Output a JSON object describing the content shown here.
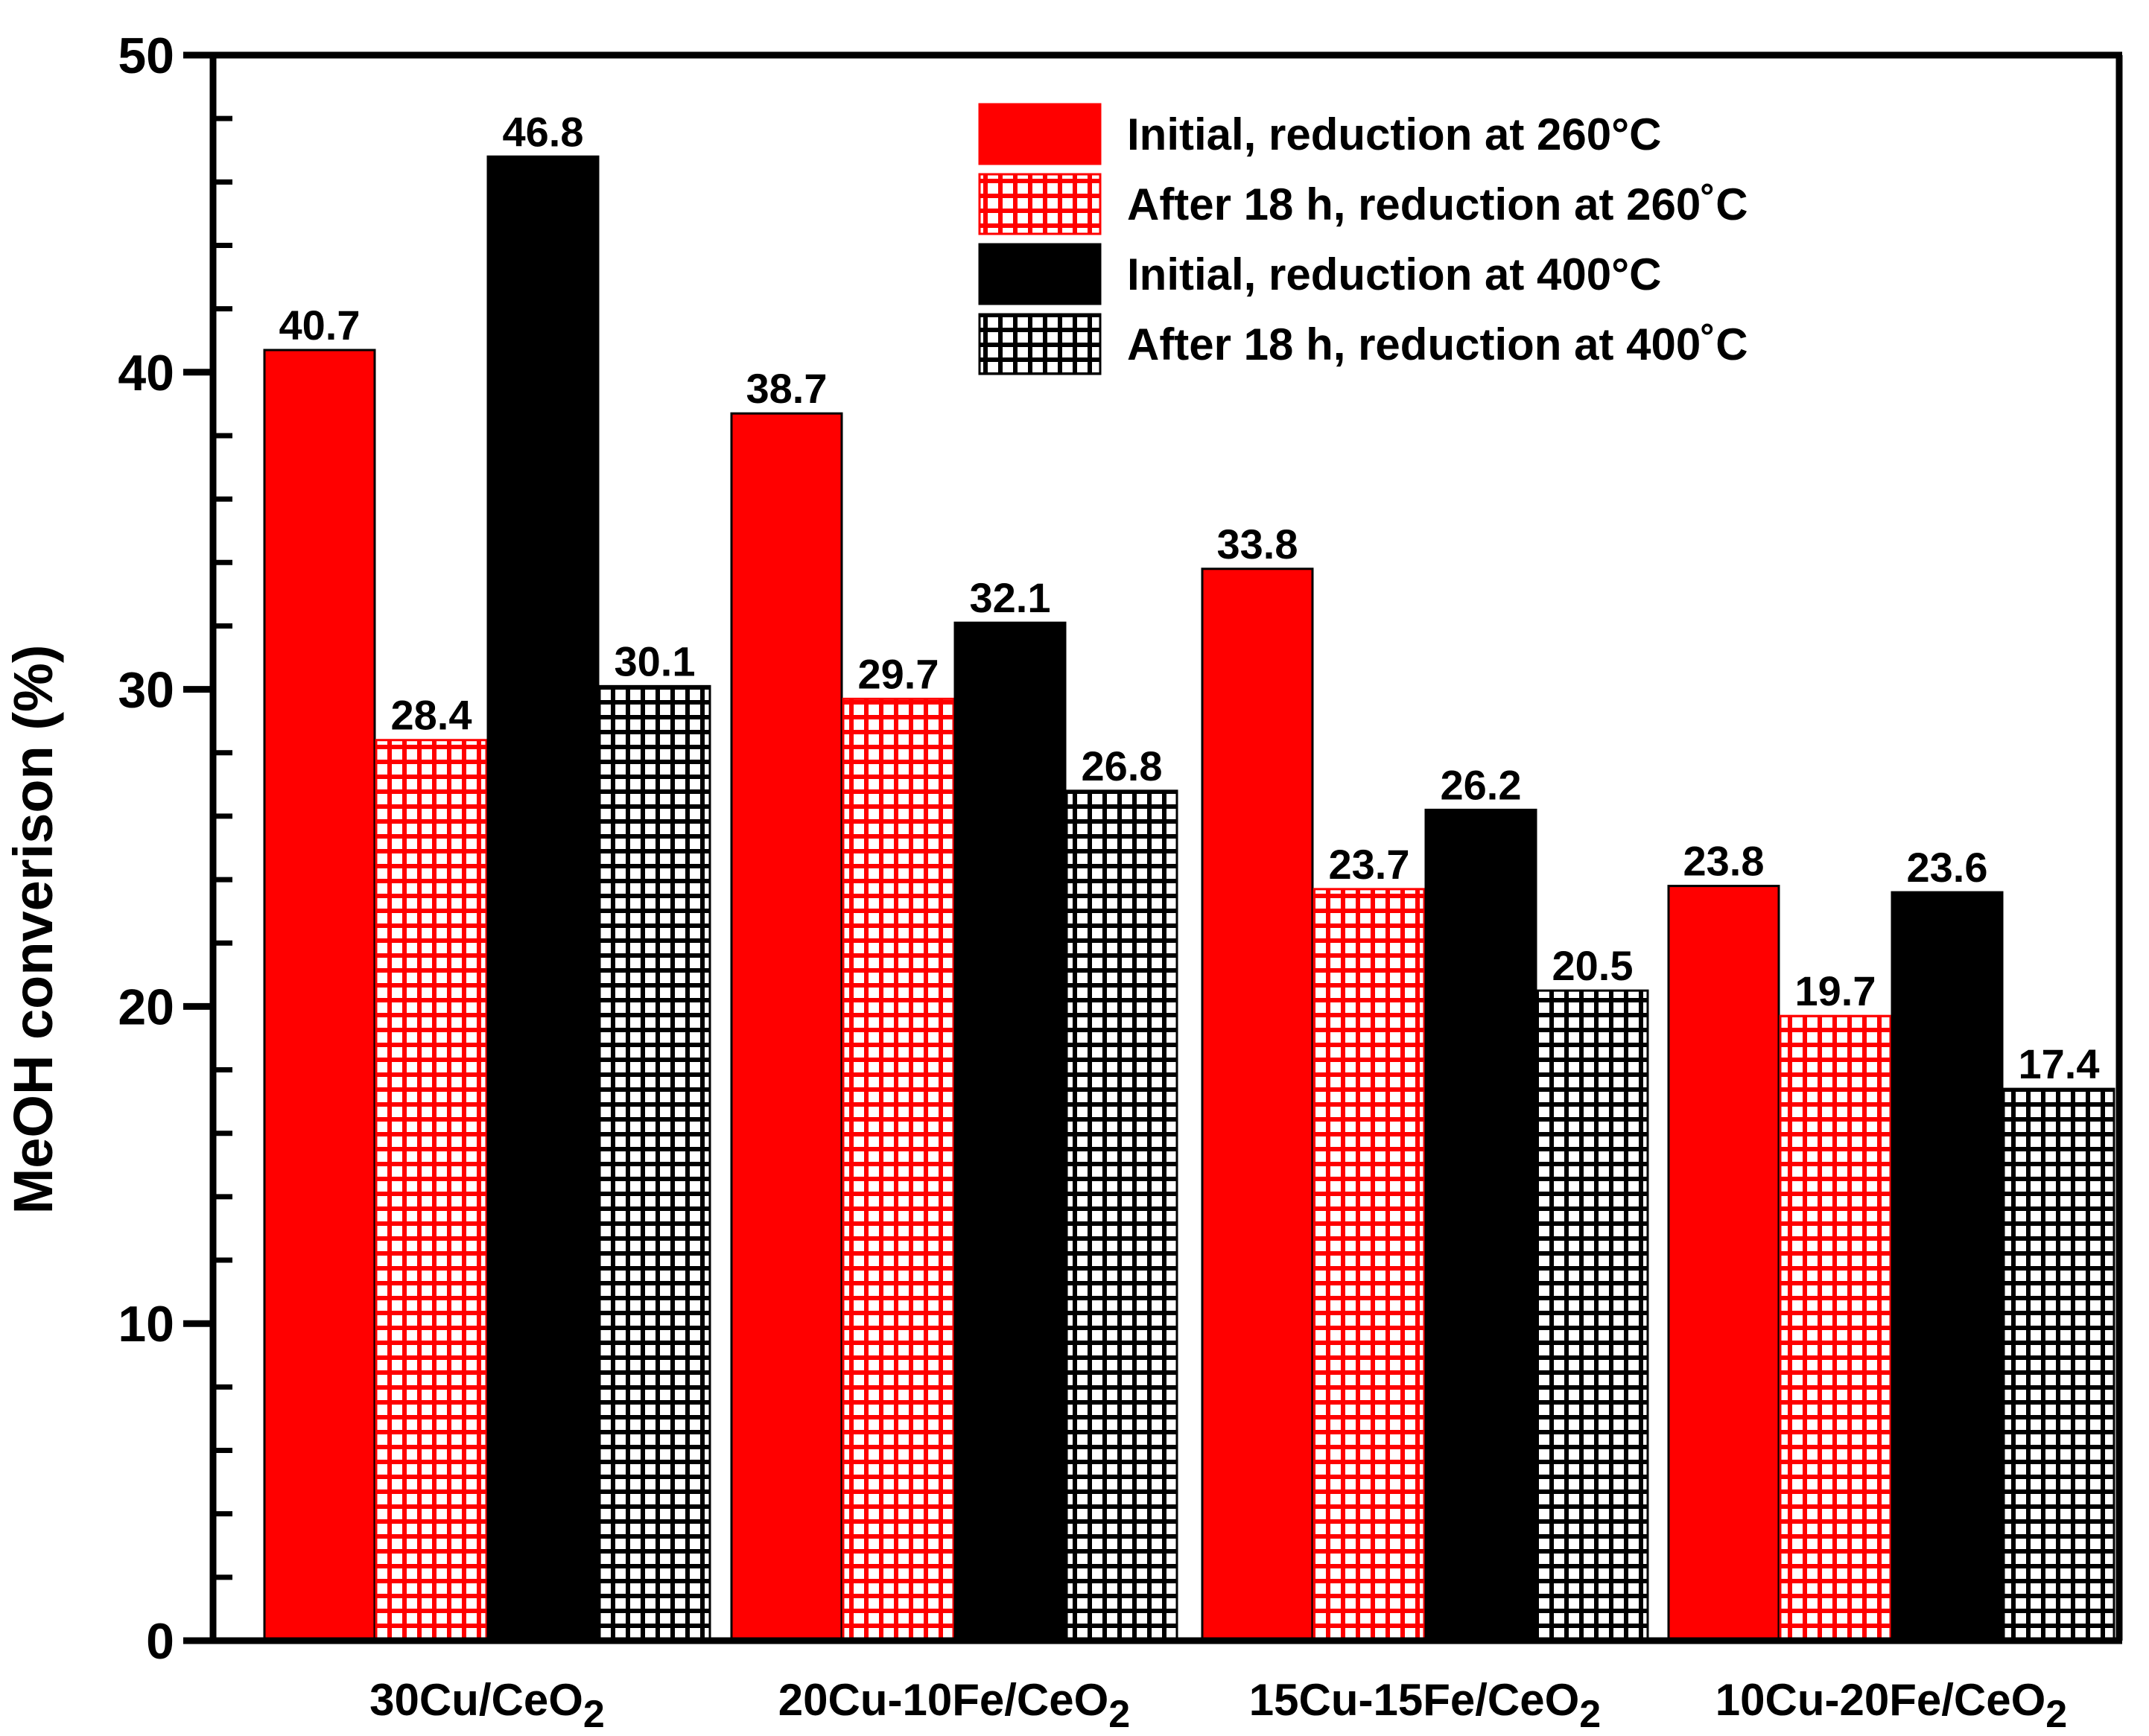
{
  "chart_data": {
    "type": "bar",
    "title": "",
    "xlabel": "",
    "ylabel": "MeOH converison (%)",
    "ylim": [
      0,
      50
    ],
    "yticks": [
      0,
      10,
      20,
      30,
      40,
      50
    ],
    "grid": false,
    "legend_position": "top-right",
    "categories": [
      {
        "main": "30Cu/CeO",
        "sub": "2"
      },
      {
        "main": "20Cu-10Fe/CeO",
        "sub": "2"
      },
      {
        "main": "15Cu-15Fe/CeO",
        "sub": "2"
      },
      {
        "main": "10Cu-20Fe/CeO",
        "sub": "2"
      }
    ],
    "series": [
      {
        "name": "Initial, reduction at 260°C",
        "color": "#ff0000",
        "pattern": "solid",
        "values": [
          40.7,
          38.7,
          33.8,
          23.8
        ]
      },
      {
        "name": "After 18 h, reduction at 260˚C",
        "color": "#ff0000",
        "pattern": "grid",
        "values": [
          28.4,
          29.7,
          23.7,
          19.7
        ]
      },
      {
        "name": "Initial, reduction at 400°C",
        "color": "#000000",
        "pattern": "solid",
        "values": [
          46.8,
          32.1,
          26.2,
          23.6
        ]
      },
      {
        "name": "After 18 h, reduction at 400˚C",
        "color": "#000000",
        "pattern": "grid",
        "values": [
          30.1,
          26.8,
          20.5,
          17.4
        ]
      }
    ],
    "data_labels": [
      [
        "40.7",
        "38.7",
        "33.8",
        "23.8"
      ],
      [
        "28.4",
        "29.7",
        "23.7",
        "19.7"
      ],
      [
        "46.8",
        "32.1",
        "26.2",
        "23.6"
      ],
      [
        "30.1",
        "26.8",
        "20.5",
        "17.4"
      ]
    ]
  }
}
